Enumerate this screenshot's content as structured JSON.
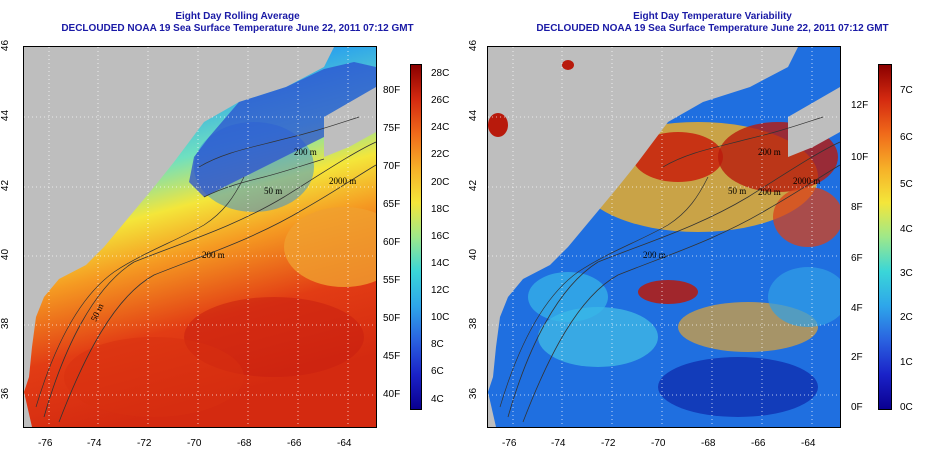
{
  "left_panel": {
    "title_line1": "Eight Day Rolling Average",
    "title_line2": "DECLOUDED NOAA 19 Sea Surface Temperature June 22, 2011 07:12 GMT",
    "contour_labels": [
      "200 m",
      "2000 m",
      "200 m",
      "50 m",
      "50 m"
    ],
    "colorbar": {
      "right_labels": [
        "28C",
        "26C",
        "24C",
        "22C",
        "20C",
        "18C",
        "16C",
        "14C",
        "12C",
        "10C",
        "8C",
        "6C",
        "4C"
      ],
      "left_labels": [
        "80F",
        "75F",
        "70F",
        "65F",
        "60F",
        "55F",
        "50F",
        "45F",
        "40F"
      ]
    }
  },
  "right_panel": {
    "title_line1": "Eight Day Temperature Variability",
    "title_line2": "DECLOUDED NOAA 19 Sea Surface Temperature June 22, 2011 07:12 GMT",
    "contour_labels": [
      "200 m",
      "2000 m",
      "200 m",
      "50 m",
      "200 m"
    ],
    "colorbar": {
      "right_labels": [
        "7C",
        "6C",
        "5C",
        "4C",
        "3C",
        "2C",
        "1C",
        "0C"
      ],
      "left_labels": [
        "12F",
        "10F",
        "8F",
        "6F",
        "4F",
        "2F",
        "0F"
      ]
    }
  },
  "axes": {
    "x_ticks": [
      "-76",
      "-74",
      "-72",
      "-70",
      "-68",
      "-66",
      "-64"
    ],
    "y_ticks": [
      "46",
      "44",
      "42",
      "40",
      "38",
      "36"
    ]
  },
  "colors": {
    "title": "#1a1aa6",
    "land": "#bebebe"
  }
}
